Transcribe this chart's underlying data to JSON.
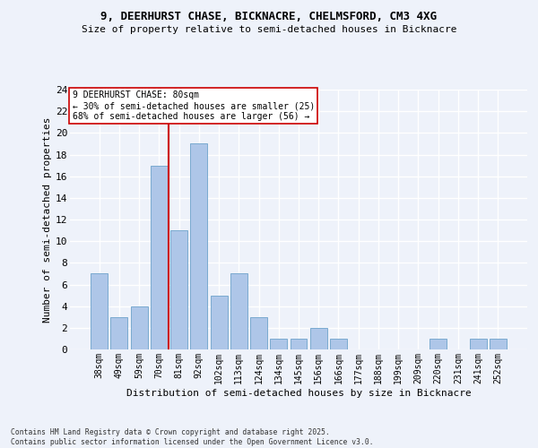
{
  "title_line1": "9, DEERHURST CHASE, BICKNACRE, CHELMSFORD, CM3 4XG",
  "title_line2": "Size of property relative to semi-detached houses in Bicknacre",
  "xlabel": "Distribution of semi-detached houses by size in Bicknacre",
  "ylabel": "Number of semi-detached properties",
  "categories": [
    "38sqm",
    "49sqm",
    "59sqm",
    "70sqm",
    "81sqm",
    "92sqm",
    "102sqm",
    "113sqm",
    "124sqm",
    "134sqm",
    "145sqm",
    "156sqm",
    "166sqm",
    "177sqm",
    "188sqm",
    "199sqm",
    "209sqm",
    "220sqm",
    "231sqm",
    "241sqm",
    "252sqm"
  ],
  "values": [
    7,
    3,
    4,
    17,
    11,
    19,
    5,
    7,
    3,
    1,
    1,
    2,
    1,
    0,
    0,
    0,
    0,
    1,
    0,
    1,
    1
  ],
  "bar_color": "#aec6e8",
  "bar_edge_color": "#7aaad0",
  "vline_color": "#cc0000",
  "annotation_title": "9 DEERHURST CHASE: 80sqm",
  "annotation_line1": "← 30% of semi-detached houses are smaller (25)",
  "annotation_line2": "68% of semi-detached houses are larger (56) →",
  "annotation_box_color": "#ffffff",
  "annotation_box_edge": "#cc0000",
  "ylim": [
    0,
    24
  ],
  "yticks": [
    0,
    2,
    4,
    6,
    8,
    10,
    12,
    14,
    16,
    18,
    20,
    22,
    24
  ],
  "footer_line1": "Contains HM Land Registry data © Crown copyright and database right 2025.",
  "footer_line2": "Contains public sector information licensed under the Open Government Licence v3.0.",
  "bg_color": "#eef2fa",
  "grid_color": "#ffffff"
}
